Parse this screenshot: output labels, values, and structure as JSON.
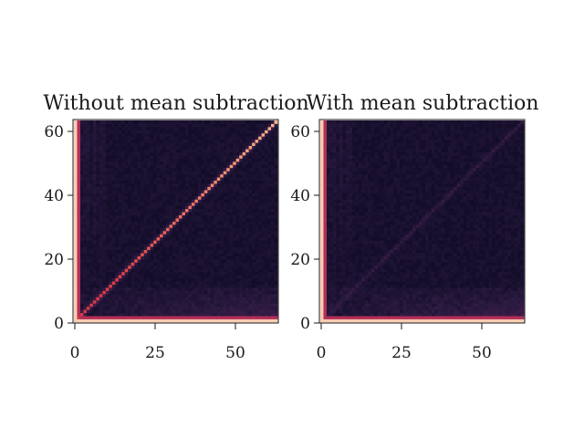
{
  "chart_data": [
    {
      "type": "heatmap",
      "title": "Without mean subtraction",
      "xlabel": "",
      "ylabel": "",
      "xlim": [
        0,
        64
      ],
      "ylim": [
        0,
        64
      ],
      "xticks": [
        "0",
        "25",
        "50"
      ],
      "yticks": [
        "0",
        "20",
        "40",
        "60"
      ],
      "size": 64,
      "pattern": "strong diagonal (self-correlation) with bright first row/column and mild low-row banding",
      "grid": false,
      "colormap": [
        "#03051a",
        "#2b1a40",
        "#5b1f56",
        "#a12a5e",
        "#e13c42",
        "#f6a47c",
        "#faebdd"
      ]
    },
    {
      "type": "heatmap",
      "title": "With mean subtraction",
      "xlabel": "",
      "ylabel": "",
      "xlim": [
        0,
        64
      ],
      "ylim": [
        0,
        64
      ],
      "xticks": [
        "0",
        "25",
        "50"
      ],
      "yticks": [
        "0",
        "20",
        "40",
        "60"
      ],
      "size": 64,
      "pattern": "faint diagonal with bright first row/column and low-row banding",
      "grid": false,
      "colormap": [
        "#03051a",
        "#2b1a40",
        "#5b1f56",
        "#a12a5e",
        "#e13c42",
        "#f6a47c",
        "#faebdd"
      ]
    }
  ]
}
